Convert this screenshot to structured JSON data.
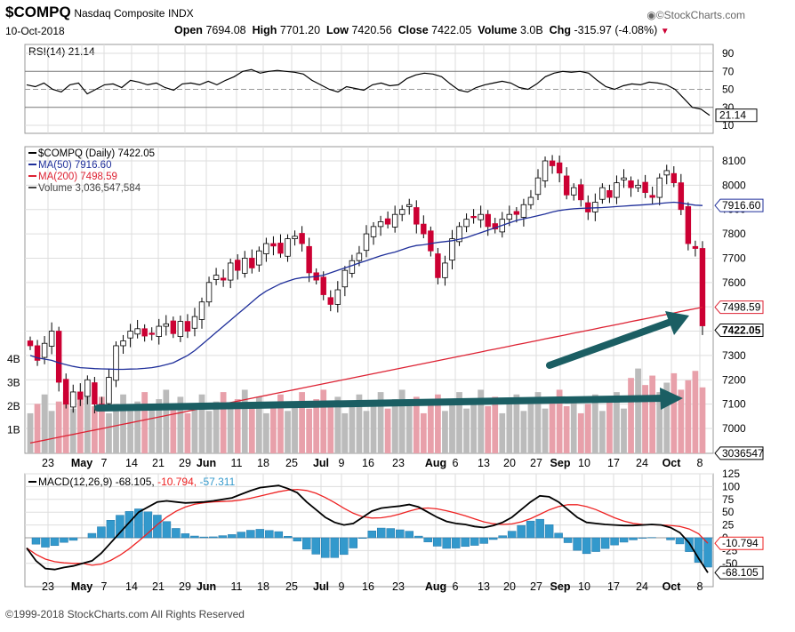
{
  "header": {
    "symbol": "$COMPQ",
    "name": "Nasdaq Composite",
    "exchange": "INDX",
    "date": "10-Oct-2018",
    "watermark": "©StockCharts.com",
    "stats": [
      {
        "label": "Open",
        "value": "7694.08"
      },
      {
        "label": "High",
        "value": "7701.20"
      },
      {
        "label": "Low",
        "value": "7420.56"
      },
      {
        "label": "Close",
        "value": "7422.05"
      },
      {
        "label": "Volume",
        "value": "3.0B"
      },
      {
        "label": "Chg",
        "value": "-315.97 (-4.08%)"
      }
    ]
  },
  "footer": "©1999-2018 StockCharts.com All Rights Reserved",
  "colors": {
    "up": "#ffffff",
    "down": "#cc0033",
    "ma50": "#1f2f9a",
    "ma200": "#dd2233",
    "rsi": "#000000",
    "macd": "#000000",
    "signal": "#ee2222",
    "hist": "#3399cc",
    "arrow": "#1b5e63",
    "grid": "#dddddd"
  },
  "chart_data": [
    {
      "type": "line",
      "name": "rsi-panel",
      "legend": "RSI(14) 21.14",
      "ylim": [
        0,
        100
      ],
      "ticks": [
        "90",
        "70",
        "50",
        "30",
        "10"
      ],
      "tick_values": [
        90,
        70,
        50,
        30,
        10
      ],
      "last_label": "21.14",
      "last_value": 21.14
    },
    {
      "type": "candlestick",
      "name": "price-panel",
      "ylim": [
        6920,
        8200
      ],
      "ticks": [
        "8100",
        "8000",
        "7900",
        "7800",
        "7700",
        "7600",
        "7500",
        "7400",
        "7300",
        "7200",
        "7100",
        "7000"
      ],
      "tick_values": [
        8100,
        8000,
        7900,
        7800,
        7700,
        7600,
        7500,
        7400,
        7300,
        7200,
        7100,
        7000
      ],
      "legend": [
        {
          "label": "$COMPQ (Daily) 7422.05"
        },
        {
          "label": "MA(50) 7916.60"
        },
        {
          "label": "MA(200) 7498.59"
        },
        {
          "label": "Volume 3,036,547,584"
        }
      ],
      "right_labels": [
        {
          "text": "7916.60",
          "value": 7916.6
        },
        {
          "text": "7498.59",
          "value": 7498.59
        },
        {
          "text": "7422.05",
          "value": 7422.05
        },
        {
          "text": "3036547",
          "value": 3036547
        }
      ],
      "volume_ticks": [
        "4B",
        "3B",
        "2B",
        "1B"
      ],
      "volume_tick_values": [
        4,
        3,
        2,
        1
      ],
      "volume_max": 6.2,
      "annotations": [
        "upward-trend-arrow",
        "volume-trend-arrow"
      ]
    },
    {
      "type": "line",
      "name": "macd-panel",
      "legend": {
        "label": "MACD(12,26,9)",
        "macd": "-68.105",
        "signal": "-10.794",
        "hist": "-57.311"
      },
      "ylim": [
        -75,
        125
      ],
      "ticks": [
        "125",
        "100",
        "75",
        "50",
        "25",
        "0",
        "-25",
        "-50"
      ],
      "tick_values": [
        125,
        100,
        75,
        50,
        25,
        0,
        -25,
        -50
      ],
      "right_labels": [
        {
          "text": "-10.794",
          "value": -10.794
        },
        {
          "text": "-68.105",
          "value": -68.105
        }
      ]
    }
  ],
  "x_axis": {
    "labels": [
      {
        "text": "23",
        "bold": false
      },
      {
        "text": "May",
        "bold": true
      },
      {
        "text": "7",
        "bold": false
      },
      {
        "text": "14",
        "bold": false
      },
      {
        "text": "21",
        "bold": false
      },
      {
        "text": "29",
        "bold": false
      },
      {
        "text": "Jun",
        "bold": true
      },
      {
        "text": "11",
        "bold": false
      },
      {
        "text": "18",
        "bold": false
      },
      {
        "text": "25",
        "bold": false
      },
      {
        "text": "Jul",
        "bold": true
      },
      {
        "text": "9",
        "bold": false
      },
      {
        "text": "16",
        "bold": false
      },
      {
        "text": "23",
        "bold": false
      },
      {
        "text": "Aug",
        "bold": true
      },
      {
        "text": "6",
        "bold": false
      },
      {
        "text": "13",
        "bold": false
      },
      {
        "text": "20",
        "bold": false
      },
      {
        "text": "27",
        "bold": false
      },
      {
        "text": "Sep",
        "bold": true
      },
      {
        "text": "10",
        "bold": false
      },
      {
        "text": "17",
        "bold": false
      },
      {
        "text": "24",
        "bold": false
      },
      {
        "text": "Oct",
        "bold": true
      },
      {
        "text": "8",
        "bold": false
      }
    ]
  }
}
